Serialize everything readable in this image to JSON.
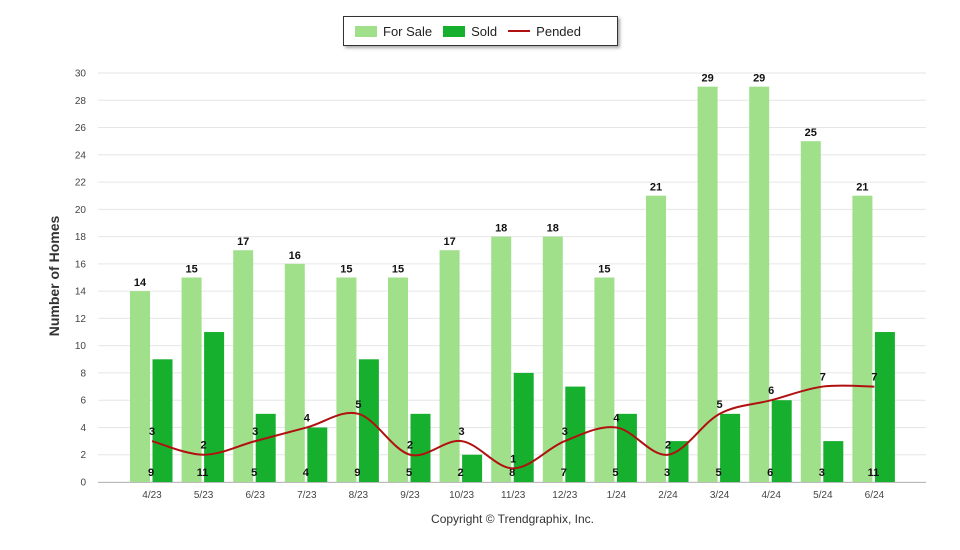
{
  "chart_data": {
    "type": "bar",
    "title": "",
    "xlabel": "",
    "ylabel": "Number of Homes",
    "ylim": [
      0,
      30
    ],
    "ytick_step": 2,
    "grid": true,
    "legend_position": "top-center",
    "categories": [
      "4/23",
      "5/23",
      "6/23",
      "7/23",
      "8/23",
      "9/23",
      "10/23",
      "11/23",
      "12/23",
      "1/24",
      "2/24",
      "3/24",
      "4/24",
      "5/24",
      "6/24"
    ],
    "series": [
      {
        "name": "For Sale",
        "kind": "bar",
        "color": "#a0e08a",
        "values": [
          14,
          15,
          17,
          16,
          15,
          15,
          17,
          18,
          18,
          15,
          21,
          29,
          29,
          25,
          21
        ]
      },
      {
        "name": "Sold",
        "kind": "bar",
        "color": "#17b02e",
        "values": [
          9,
          11,
          5,
          4,
          9,
          5,
          2,
          8,
          7,
          5,
          3,
          5,
          6,
          3,
          11
        ]
      },
      {
        "name": "Pended",
        "kind": "line",
        "color": "#b01010",
        "values": [
          3,
          2,
          3,
          4,
          5,
          2,
          3,
          1,
          3,
          4,
          2,
          5,
          6,
          7,
          7
        ]
      }
    ],
    "footer": "Copyright © Trendgraphix, Inc."
  }
}
